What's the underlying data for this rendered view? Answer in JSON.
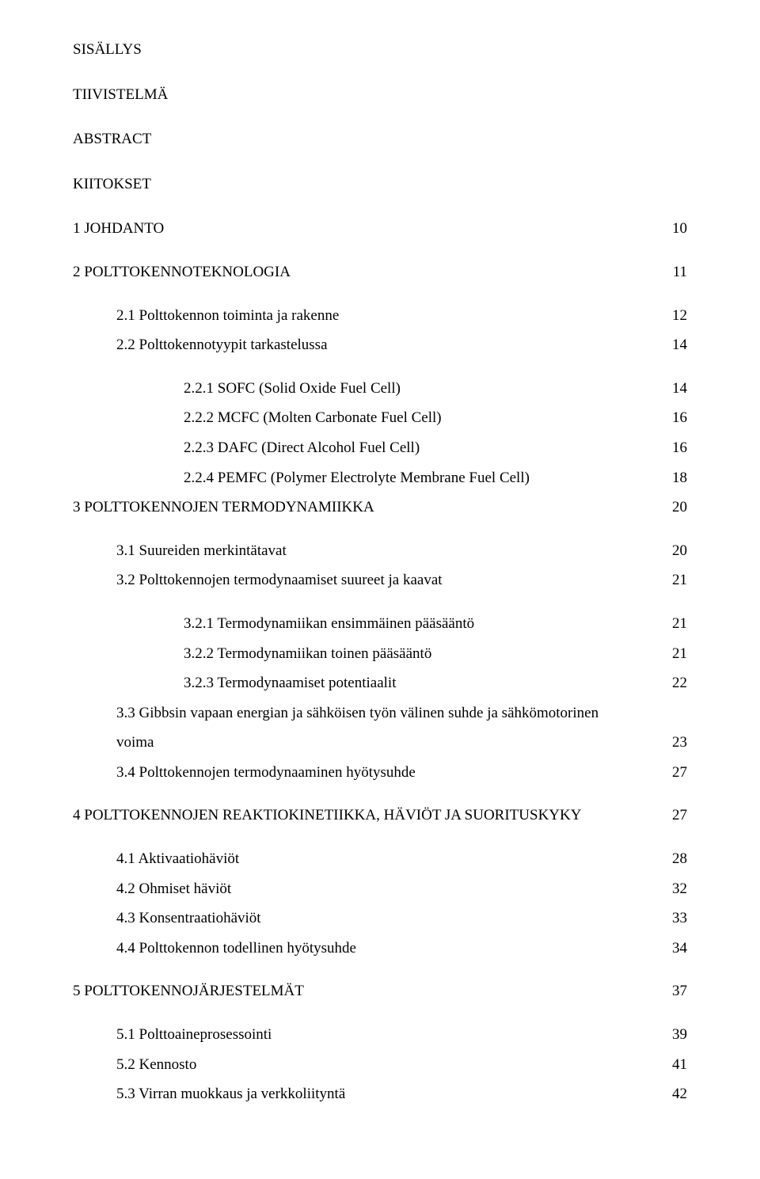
{
  "colors": {
    "text": "#000000",
    "background": "#ffffff"
  },
  "typography": {
    "font_family": "Times New Roman",
    "base_fontsize_pt": 14
  },
  "headings": {
    "sisallys": "SISÄLLYS",
    "tiivistelma": "TIIVISTELMÄ",
    "abstract": "ABSTRACT",
    "kiitokset": "KIITOKSET"
  },
  "toc": [
    {
      "level": 0,
      "label": "1  JOHDANTO",
      "page": "10"
    },
    {
      "level": 0,
      "label": "2  POLTTOKENNOTEKNOLOGIA",
      "page": "11",
      "gap_before": true
    },
    {
      "level": 1,
      "label": "2.1  Polttokennon toiminta ja rakenne",
      "page": "12",
      "gap_before": true
    },
    {
      "level": 1,
      "label": "2.2  Polttokennotyypit tarkastelussa",
      "page": "14"
    },
    {
      "level": 2,
      "label": "2.2.1  SOFC (Solid Oxide Fuel Cell)",
      "page": "14",
      "gap_before": true
    },
    {
      "level": 2,
      "label": "2.2.2  MCFC (Molten Carbonate Fuel Cell)",
      "page": "16"
    },
    {
      "level": 2,
      "label": "2.2.3  DAFC (Direct Alcohol Fuel Cell)",
      "page": "16"
    },
    {
      "level": 2,
      "label": "2.2.4  PEMFC (Polymer Electrolyte Membrane Fuel Cell)",
      "page": "18"
    },
    {
      "level": 0,
      "label": "3  POLTTOKENNOJEN  TERMODYNAMIIKKA",
      "page": "20"
    },
    {
      "level": 1,
      "label": "3.1  Suureiden merkintätavat",
      "page": "20",
      "gap_before": true
    },
    {
      "level": 1,
      "label": "3.2  Polttokennojen termodynaamiset suureet ja kaavat",
      "page": "21"
    },
    {
      "level": 2,
      "label": "3.2.1  Termodynamiikan ensimmäinen pääsääntö",
      "page": "21",
      "gap_before": true
    },
    {
      "level": 2,
      "label": "3.2.2  Termodynamiikan toinen pääsääntö",
      "page": "21"
    },
    {
      "level": 2,
      "label": "3.2.3  Termodynaamiset potentiaalit",
      "page": "22"
    },
    {
      "level": 1,
      "label": "3.3  Gibbsin vapaan energian ja sähköisen työn välinen suhde ja sähkömotorinen",
      "page": ""
    },
    {
      "level": 1,
      "label": "voima",
      "page": "23"
    },
    {
      "level": 1,
      "label": "3.4  Polttokennojen termodynaaminen hyötysuhde",
      "page": "27"
    },
    {
      "level": 0,
      "label": "4  POLTTOKENNOJEN REAKTIOKINETIIKKA, HÄVIÖT JA SUORITUSKYKY",
      "page": "27",
      "gap_before": true
    },
    {
      "level": 1,
      "label": "4.1  Aktivaatiohäviöt",
      "page": "28",
      "gap_before": true
    },
    {
      "level": 1,
      "label": "4.2  Ohmiset häviöt",
      "page": "32"
    },
    {
      "level": 1,
      "label": "4.3  Konsentraatiohäviöt",
      "page": "33"
    },
    {
      "level": 1,
      "label": "4.4  Polttokennon todellinen hyötysuhde",
      "page": "34"
    },
    {
      "level": 0,
      "label": "5  POLTTOKENNOJÄRJESTELMÄT",
      "page": "37",
      "gap_before": true
    },
    {
      "level": 1,
      "label": "5.1  Polttoaineprosessointi",
      "page": "39",
      "gap_before": true
    },
    {
      "level": 1,
      "label": "5.2  Kennosto",
      "page": "41"
    },
    {
      "level": 1,
      "label": "5.3  Virran muokkaus ja verkkoliityntä",
      "page": "42"
    }
  ]
}
